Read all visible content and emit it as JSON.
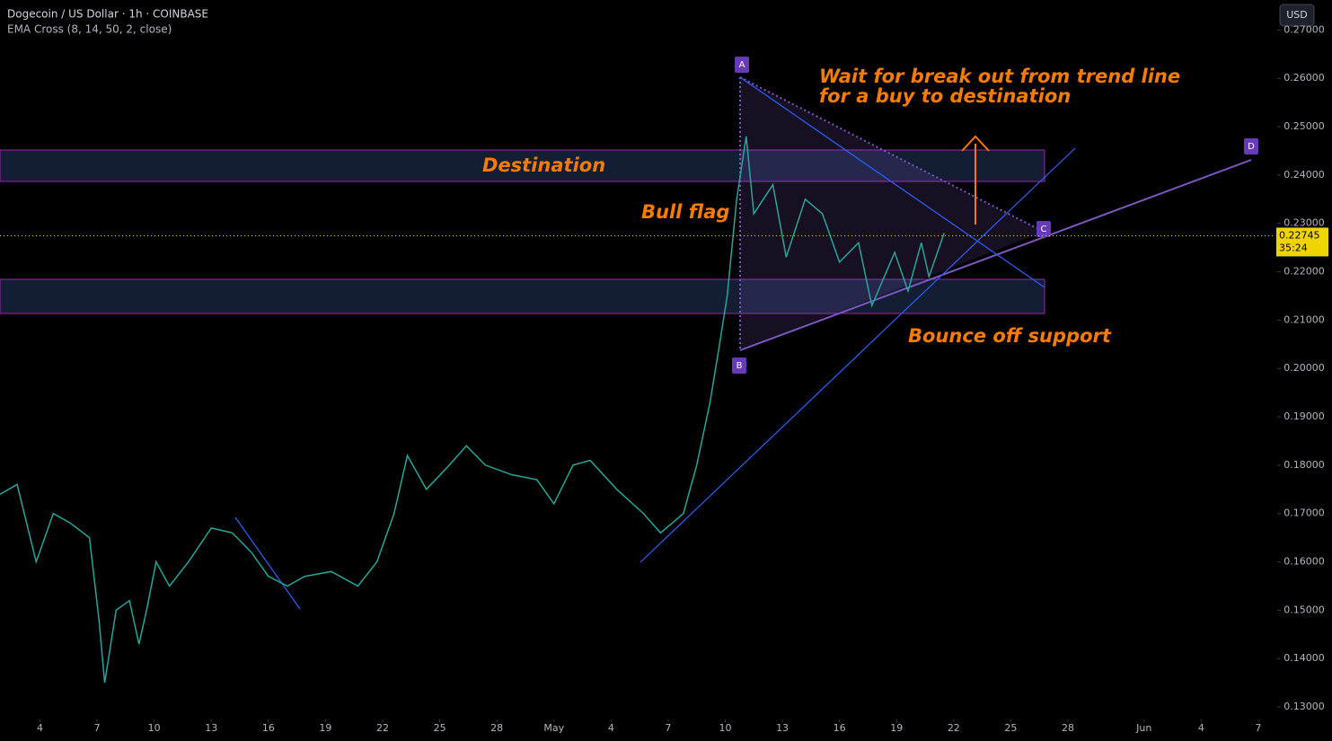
{
  "chart_data": {
    "type": "line",
    "title": "Dogecoin / US Dollar · 1h · COINBASE",
    "subtitle": "EMA Cross (8, 14, 50, 2, close)",
    "currency": "USD",
    "x": [
      1.9,
      2.8,
      3.8,
      4.7,
      5.6,
      6.6,
      7.1,
      7.4,
      8.0,
      8.7,
      9.2,
      9.6,
      10.1,
      10.8,
      11.8,
      13.0,
      14.1,
      15.1,
      16.0,
      17.0,
      17.9,
      19.3,
      20.7,
      21.7,
      22.6,
      23.3,
      24.3,
      25.5,
      26.4,
      27.4,
      28.8,
      30.1,
      31.0,
      32.0,
      32.9,
      34.3,
      35.7,
      36.6,
      37.8,
      38.5,
      39.2,
      39.7,
      40.1,
      40.6,
      41.1,
      41.5,
      42.5,
      43.2,
      44.2,
      45.1,
      46.0,
      47.0,
      47.7,
      48.9,
      49.6,
      50.3,
      50.7,
      51.5
    ],
    "values": [
      0.174,
      0.176,
      0.16,
      0.17,
      0.168,
      0.165,
      0.148,
      0.135,
      0.15,
      0.152,
      0.143,
      0.15,
      0.16,
      0.155,
      0.16,
      0.167,
      0.166,
      0.162,
      0.157,
      0.155,
      0.157,
      0.158,
      0.155,
      0.16,
      0.17,
      0.182,
      0.175,
      0.18,
      0.184,
      0.18,
      0.178,
      0.177,
      0.172,
      0.18,
      0.181,
      0.175,
      0.17,
      0.166,
      0.17,
      0.18,
      0.193,
      0.205,
      0.215,
      0.235,
      0.248,
      0.232,
      0.238,
      0.223,
      0.235,
      0.232,
      0.222,
      0.226,
      0.213,
      0.224,
      0.216,
      0.226,
      0.219,
      0.228
    ],
    "color": "#26a69a",
    "xlim": [
      1.9,
      68.9
    ],
    "xticks": [
      {
        "value": 4,
        "label": "4"
      },
      {
        "value": 7,
        "label": "7"
      },
      {
        "value": 10,
        "label": "10"
      },
      {
        "value": 13,
        "label": "13"
      },
      {
        "value": 16,
        "label": "16"
      },
      {
        "value": 19,
        "label": "19"
      },
      {
        "value": 22,
        "label": "22"
      },
      {
        "value": 25,
        "label": "25"
      },
      {
        "value": 28,
        "label": "28"
      },
      {
        "value": 31,
        "label": "May"
      },
      {
        "value": 34,
        "label": "4"
      },
      {
        "value": 37,
        "label": "7"
      },
      {
        "value": 40,
        "label": "10"
      },
      {
        "value": 43,
        "label": "13"
      },
      {
        "value": 46,
        "label": "16"
      },
      {
        "value": 49,
        "label": "19"
      },
      {
        "value": 52,
        "label": "22"
      },
      {
        "value": 55,
        "label": "25"
      },
      {
        "value": 58,
        "label": "28"
      },
      {
        "value": 62,
        "label": "Jun"
      },
      {
        "value": 65,
        "label": "4"
      },
      {
        "value": 68,
        "label": "7"
      }
    ],
    "ylim": [
      0.1276,
      0.2762
    ],
    "yticks": [
      {
        "value": 0.13,
        "label": "0.13000"
      },
      {
        "value": 0.14,
        "label": "0.14000"
      },
      {
        "value": 0.15,
        "label": "0.15000"
      },
      {
        "value": 0.16,
        "label": "0.16000"
      },
      {
        "value": 0.17,
        "label": "0.17000"
      },
      {
        "value": 0.18,
        "label": "0.18000"
      },
      {
        "value": 0.19,
        "label": "0.19000"
      },
      {
        "value": 0.2,
        "label": "0.20000"
      },
      {
        "value": 0.21,
        "label": "0.21000"
      },
      {
        "value": 0.22,
        "label": "0.22000"
      },
      {
        "value": 0.23,
        "label": "0.23000"
      },
      {
        "value": 0.24,
        "label": "0.24000"
      },
      {
        "value": 0.25,
        "label": "0.25000"
      },
      {
        "value": 0.26,
        "label": "0.26000"
      },
      {
        "value": 0.27,
        "label": "0.27000"
      }
    ],
    "last_price": 0.22745,
    "countdown": "35:24",
    "annotations": {
      "destination": "Destination",
      "bull_flag": "Bull flag",
      "wait_line1": "Wait for break out from trend line",
      "wait_line2": "for a buy to destination",
      "bounce": "Bounce off support"
    },
    "points": [
      "A",
      "B",
      "C",
      "D"
    ]
  }
}
